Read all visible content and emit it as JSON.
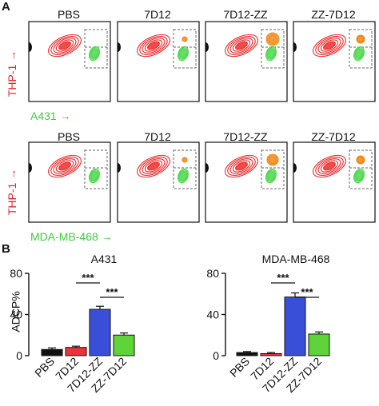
{
  "panels": {
    "a": "A",
    "b": "B"
  },
  "flow": {
    "rows": [
      {
        "xlabel": "A431",
        "ylabel": "THP-1",
        "titles": [
          "PBS",
          "7D12",
          "7D12-ZZ",
          "ZZ-7D12"
        ]
      },
      {
        "xlabel": "MDA-MB-468",
        "ylabel": "THP-1",
        "titles": [
          "PBS",
          "7D12",
          "7D12-ZZ",
          "ZZ-7D12"
        ]
      }
    ],
    "gates": [
      "R1",
      "R2"
    ],
    "colors": {
      "thp1": "#ee2a2a",
      "target": "#4cd84c",
      "double": "#f08a18",
      "xlabel": "#3ecc3e",
      "ylabel": "#e8262a"
    }
  },
  "chart_data": [
    {
      "type": "bar",
      "title": "A431",
      "ylabel": "ADCP%",
      "categories": [
        "PBS",
        "7D12",
        "7D12-ZZ",
        "ZZ-7D12"
      ],
      "values": [
        6,
        8,
        45,
        20
      ],
      "errors": [
        1.5,
        1.2,
        3,
        2
      ],
      "colors": [
        "#111111",
        "#e8343a",
        "#3a4fd8",
        "#5fd33a"
      ],
      "ylim": [
        0,
        80
      ],
      "yticks": [
        "0",
        "40",
        "80"
      ],
      "significance": [
        "***",
        "***"
      ]
    },
    {
      "type": "bar",
      "title": "MDA-MB-468",
      "ylabel": "",
      "categories": [
        "PBS",
        "7D12",
        "7D12-ZZ",
        "ZZ-7D12"
      ],
      "values": [
        3,
        2,
        57,
        21
      ],
      "errors": [
        1,
        1,
        4,
        2
      ],
      "colors": [
        "#111111",
        "#e8343a",
        "#3a4fd8",
        "#5fd33a"
      ],
      "ylim": [
        0,
        80
      ],
      "yticks": [
        "0",
        "40",
        "80"
      ],
      "significance": [
        "***",
        "***"
      ]
    }
  ]
}
